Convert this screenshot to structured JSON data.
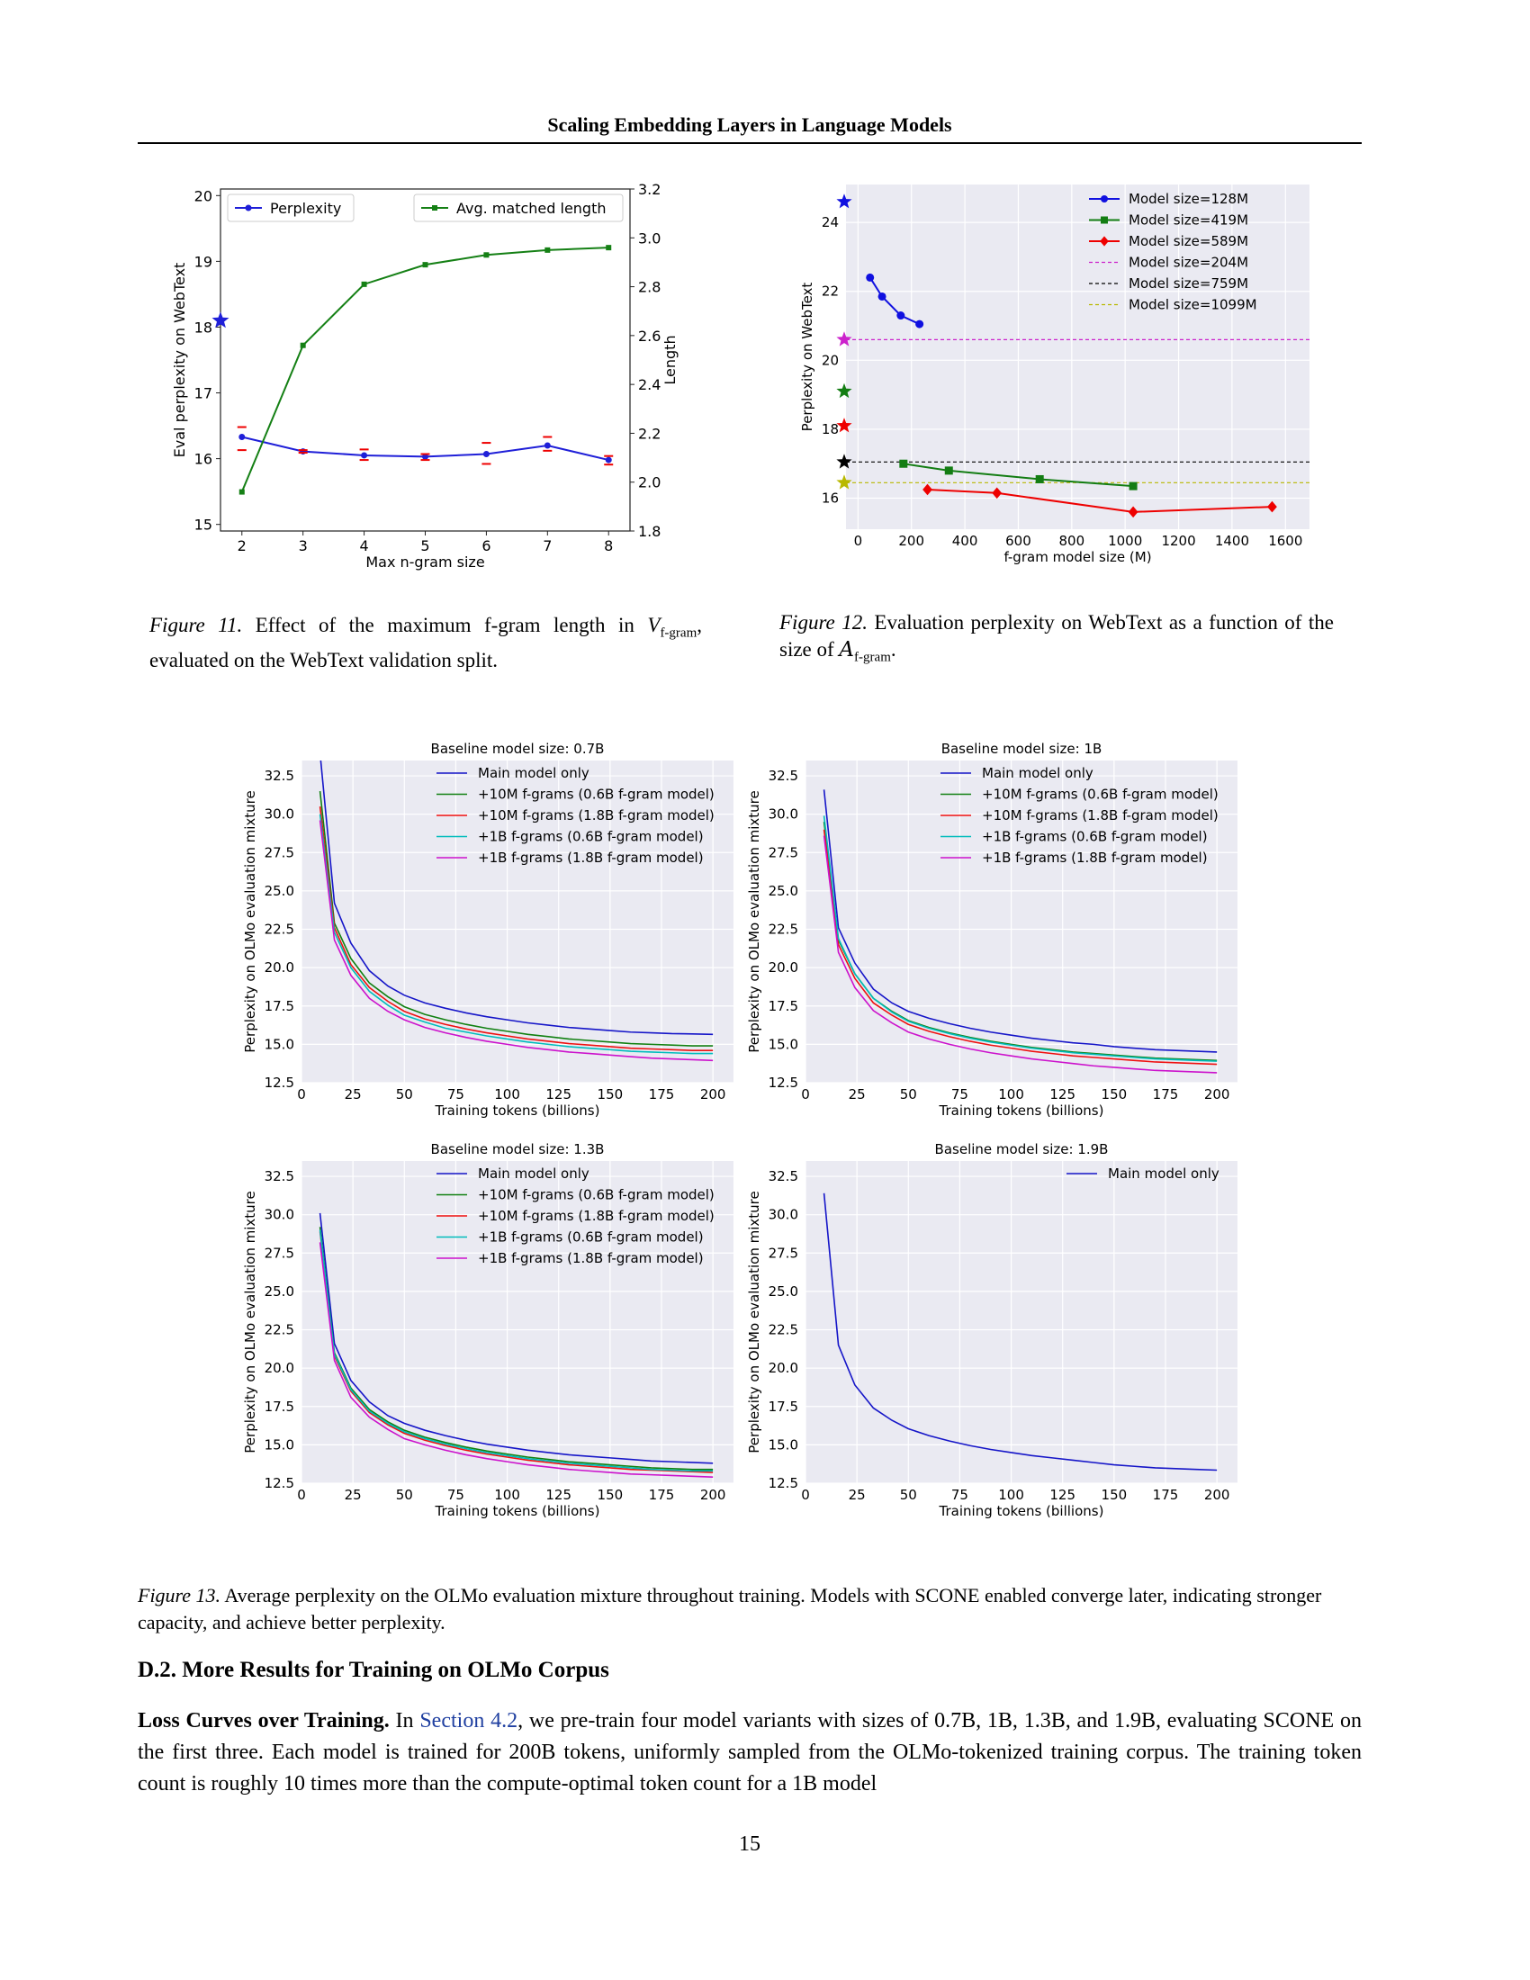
{
  "header": {
    "running_title": "Scaling Embedding Layers in Language Models"
  },
  "captions": {
    "fig11": {
      "label": "Figure 11.",
      "text_before": " Effect of the maximum f-gram length in ",
      "math": "V",
      "math_sub": "f-gram",
      "text_after": ", evaluated on the WebText validation split."
    },
    "fig12": {
      "label": "Figure 12.",
      "text_before": " Evaluation perplexity on WebText as a function of the size of ",
      "math": "A",
      "math_sub": "f-gram",
      "text_after": "."
    },
    "fig13": {
      "label": "Figure 13.",
      "text_before": " Average perplexity on the OLMo evaluation mixture throughout training. Models with ",
      "scone": "SCONE",
      "text_after": " enabled converge later, indicating stronger capacity, and achieve better perplexity."
    }
  },
  "section": {
    "heading": "D.2. More Results for Training on OLMo Corpus"
  },
  "paragraph": {
    "run_in": "Loss Curves over Training.",
    "text1": " In ",
    "link": "Section 4.2",
    "text2": ", we pre-train four model variants with sizes of 0.7B, 1B, 1.3B, and 1.9B, evaluating ",
    "scone": "SCONE",
    "text3": " on the first three. Each model is trained for 200B tokens, uniformly sampled from the OLMo-tokenized training corpus. The training token count is roughly 10 times more than the compute-optimal token count for a 1B model"
  },
  "page_number": "15",
  "chart_data": [
    {
      "id": "fig11",
      "type": "line",
      "xlabel": "Max n-gram size",
      "ylabel": "Eval perplexity on WebText",
      "y2label": "Length",
      "x": [
        2,
        3,
        4,
        5,
        6,
        7,
        8
      ],
      "xticks": [
        "2",
        "3",
        "4",
        "5",
        "6",
        "7",
        "8"
      ],
      "xlim": [
        1.65,
        8.35
      ],
      "ylim": [
        14.9,
        20.1
      ],
      "yticks": [
        "15",
        "16",
        "17",
        "18",
        "19",
        "20"
      ],
      "y2lim": [
        1.8,
        3.2
      ],
      "y2ticks": [
        "1.8",
        "2.0",
        "2.2",
        "2.4",
        "2.6",
        "2.8",
        "3.0",
        "3.2"
      ],
      "series": [
        {
          "name": "Perplexity",
          "axis": "left",
          "color": "#1f1fd8",
          "marker": "dot",
          "values": [
            16.33,
            16.11,
            16.05,
            16.03,
            16.07,
            16.2,
            15.98
          ],
          "err_low": [
            16.13,
            16.09,
            15.98,
            15.98,
            15.92,
            16.12,
            15.91
          ],
          "err_high": [
            16.48,
            16.13,
            16.14,
            16.07,
            16.24,
            16.33,
            16.04
          ]
        },
        {
          "name": "Avg. matched length",
          "axis": "right",
          "color": "#158015",
          "marker": "square",
          "values": [
            1.96,
            2.56,
            2.81,
            2.89,
            2.93,
            2.95,
            2.96
          ]
        }
      ],
      "baseline_star": {
        "value": 18.1,
        "color": "#1f1fd8"
      },
      "grid": false,
      "legend": [
        "top-left",
        "top-right"
      ]
    },
    {
      "id": "fig12",
      "type": "line",
      "xlabel": "f-gram model size (M)",
      "ylabel": "Perplexity on WebText",
      "xticks": [
        "0",
        "200",
        "400",
        "600",
        "800",
        "1000",
        "1200",
        "1400",
        "1600"
      ],
      "xlim": [
        -45,
        1690
      ],
      "ylim": [
        15.1,
        25.1
      ],
      "yticks": [
        "16",
        "18",
        "20",
        "22",
        "24"
      ],
      "series": [
        {
          "name": "Model size=128M",
          "color": "#1010e0",
          "marker": "dot",
          "x": [
            45,
            90,
            160,
            230
          ],
          "values": [
            22.4,
            21.85,
            21.3,
            21.05
          ]
        },
        {
          "name": "Model size=419M",
          "color": "#137d13",
          "marker": "square",
          "x": [
            170,
            340,
            680,
            1030
          ],
          "values": [
            17.0,
            16.8,
            16.55,
            16.35
          ]
        },
        {
          "name": "Model size=589M",
          "color": "#ee0000",
          "marker": "diamond",
          "x": [
            260,
            520,
            1030,
            1550
          ],
          "values": [
            16.25,
            16.15,
            15.6,
            15.75
          ]
        }
      ],
      "hlines": [
        {
          "name": "Model size=204M",
          "value": 20.6,
          "color": "#cc22cc"
        },
        {
          "name": "Model size=759M",
          "value": 17.05,
          "color": "#000000"
        },
        {
          "name": "Model size=1099M",
          "value": 16.45,
          "color": "#b8b800"
        }
      ],
      "stars": [
        {
          "value": 24.6,
          "color": "#1010e0"
        },
        {
          "value": 20.6,
          "color": "#cc22cc"
        },
        {
          "value": 19.1,
          "color": "#137d13"
        },
        {
          "value": 18.1,
          "color": "#ee0000"
        },
        {
          "value": 17.05,
          "color": "#000000"
        },
        {
          "value": 16.45,
          "color": "#b8b800"
        }
      ],
      "grid": true,
      "legend": "top-right"
    },
    {
      "id": "fig13",
      "type": "line",
      "xlabel": "Training tokens (billions)",
      "ylabel": "Perplexity on OLMo evaluation mixture",
      "xlim": [
        0,
        210
      ],
      "ylim": [
        12.5,
        33.5
      ],
      "xticks": [
        "0",
        "25",
        "50",
        "75",
        "100",
        "125",
        "150",
        "175",
        "200"
      ],
      "yticks": [
        "12.5",
        "15.0",
        "17.5",
        "20.0",
        "22.5",
        "25.0",
        "27.5",
        "30.0",
        "32.5"
      ],
      "x": [
        9,
        16,
        24,
        33,
        42,
        50,
        60,
        70,
        80,
        90,
        100,
        110,
        120,
        130,
        140,
        150,
        160,
        170,
        180,
        190,
        200
      ],
      "grid": true,
      "legend": "top-right",
      "panels": [
        {
          "title": "Baseline model size: 0.7B",
          "series": [
            {
              "name": "Main model only",
              "color": "#1515c8",
              "values": [
                34.0,
                24.2,
                21.6,
                19.8,
                18.8,
                18.2,
                17.7,
                17.35,
                17.05,
                16.8,
                16.6,
                16.4,
                16.25,
                16.1,
                16.0,
                15.9,
                15.8,
                15.75,
                15.7,
                15.68,
                15.65
              ]
            },
            {
              "name": "+10M f-grams (0.6B f-gram model)",
              "color": "#118011",
              "values": [
                31.5,
                22.9,
                20.6,
                19.0,
                18.1,
                17.45,
                16.95,
                16.6,
                16.3,
                16.05,
                15.85,
                15.65,
                15.5,
                15.35,
                15.25,
                15.15,
                15.05,
                15.0,
                14.95,
                14.9,
                14.9
              ]
            },
            {
              "name": "+10M f-grams (1.8B f-gram model)",
              "color": "#ee1010",
              "values": [
                30.5,
                22.6,
                20.2,
                18.7,
                17.8,
                17.15,
                16.65,
                16.3,
                16.0,
                15.75,
                15.55,
                15.35,
                15.2,
                15.05,
                14.95,
                14.85,
                14.75,
                14.7,
                14.65,
                14.6,
                14.6
              ]
            },
            {
              "name": "+1B f-grams (0.6B f-gram model)",
              "color": "#00bcbc",
              "values": [
                30.0,
                22.3,
                20.0,
                18.45,
                17.55,
                16.9,
                16.45,
                16.05,
                15.8,
                15.55,
                15.35,
                15.15,
                15.0,
                14.85,
                14.75,
                14.65,
                14.55,
                14.5,
                14.45,
                14.4,
                14.4
              ]
            },
            {
              "name": "+1B f-grams (1.8B f-gram model)",
              "color": "#cc12cc",
              "values": [
                29.6,
                21.8,
                19.5,
                18.0,
                17.15,
                16.6,
                16.1,
                15.75,
                15.45,
                15.2,
                15.0,
                14.8,
                14.65,
                14.5,
                14.4,
                14.3,
                14.2,
                14.1,
                14.05,
                14.0,
                13.95
              ]
            }
          ]
        },
        {
          "title": "Baseline model size: 1B",
          "series": [
            {
              "name": "Main model only",
              "color": "#1515c8",
              "values": [
                31.6,
                22.6,
                20.3,
                18.6,
                17.7,
                17.15,
                16.7,
                16.35,
                16.05,
                15.8,
                15.6,
                15.4,
                15.25,
                15.1,
                15.0,
                14.85,
                14.75,
                14.65,
                14.6,
                14.55,
                14.5
              ]
            },
            {
              "name": "+10M f-grams (0.6B f-gram model)",
              "color": "#118011",
              "values": [
                29.5,
                21.8,
                19.6,
                18.0,
                17.15,
                16.55,
                16.1,
                15.75,
                15.45,
                15.2,
                15.0,
                14.8,
                14.65,
                14.5,
                14.4,
                14.3,
                14.2,
                14.1,
                14.05,
                14.0,
                13.95
              ]
            },
            {
              "name": "+10M f-grams (1.8B f-gram model)",
              "color": "#ee1010",
              "values": [
                29.0,
                21.5,
                19.3,
                17.7,
                16.9,
                16.3,
                15.85,
                15.5,
                15.2,
                14.95,
                14.75,
                14.55,
                14.4,
                14.25,
                14.15,
                14.05,
                13.95,
                13.85,
                13.8,
                13.75,
                13.7
              ]
            },
            {
              "name": "+1B f-grams (0.6B f-gram model)",
              "color": "#00bcbc",
              "values": [
                29.9,
                21.9,
                19.6,
                18.0,
                17.1,
                16.5,
                16.05,
                15.7,
                15.4,
                15.15,
                14.95,
                14.75,
                14.6,
                14.45,
                14.35,
                14.25,
                14.15,
                14.05,
                14.0,
                13.95,
                13.9
              ]
            },
            {
              "name": "+1B f-grams (1.8B f-gram model)",
              "color": "#cc12cc",
              "values": [
                28.6,
                21.0,
                18.7,
                17.2,
                16.4,
                15.8,
                15.35,
                15.0,
                14.7,
                14.45,
                14.25,
                14.05,
                13.9,
                13.75,
                13.6,
                13.5,
                13.4,
                13.3,
                13.25,
                13.2,
                13.15
              ]
            }
          ]
        },
        {
          "title": "Baseline model size: 1.3B",
          "series": [
            {
              "name": "Main model only",
              "color": "#1515c8",
              "values": [
                30.1,
                21.6,
                19.2,
                17.8,
                16.9,
                16.4,
                15.95,
                15.6,
                15.3,
                15.05,
                14.85,
                14.65,
                14.5,
                14.35,
                14.25,
                14.15,
                14.05,
                13.95,
                13.9,
                13.85,
                13.8
              ]
            },
            {
              "name": "+10M f-grams (0.6B f-gram model)",
              "color": "#118011",
              "values": [
                29.2,
                21.0,
                18.7,
                17.3,
                16.5,
                15.95,
                15.5,
                15.15,
                14.85,
                14.6,
                14.4,
                14.2,
                14.05,
                13.9,
                13.8,
                13.7,
                13.6,
                13.5,
                13.45,
                13.4,
                13.4
              ]
            },
            {
              "name": "+10M f-grams (1.8B f-gram model)",
              "color": "#ee1010",
              "values": [
                28.9,
                20.8,
                18.5,
                17.1,
                16.3,
                15.75,
                15.3,
                14.95,
                14.65,
                14.4,
                14.2,
                14.0,
                13.85,
                13.7,
                13.6,
                13.5,
                13.4,
                13.35,
                13.3,
                13.25,
                13.2
              ]
            },
            {
              "name": "+1B f-grams (0.6B f-gram model)",
              "color": "#00bcbc",
              "values": [
                29.0,
                20.9,
                18.6,
                17.2,
                16.4,
                15.85,
                15.4,
                15.05,
                14.75,
                14.5,
                14.3,
                14.1,
                13.95,
                13.8,
                13.7,
                13.6,
                13.5,
                13.4,
                13.35,
                13.3,
                13.3
              ]
            },
            {
              "name": "+1B f-grams (1.8B f-gram model)",
              "color": "#cc12cc",
              "values": [
                28.2,
                20.5,
                18.1,
                16.8,
                16.0,
                15.4,
                15.0,
                14.65,
                14.35,
                14.1,
                13.9,
                13.7,
                13.55,
                13.4,
                13.3,
                13.2,
                13.1,
                13.05,
                13.0,
                12.95,
                12.9
              ]
            }
          ]
        },
        {
          "title": "Baseline model size: 1.9B",
          "series": [
            {
              "name": "Main model only",
              "color": "#1515c8",
              "values": [
                31.4,
                21.5,
                18.9,
                17.4,
                16.6,
                16.05,
                15.6,
                15.25,
                14.95,
                14.7,
                14.5,
                14.3,
                14.15,
                14.0,
                13.85,
                13.7,
                13.6,
                13.5,
                13.45,
                13.4,
                13.35
              ]
            }
          ]
        }
      ]
    }
  ]
}
